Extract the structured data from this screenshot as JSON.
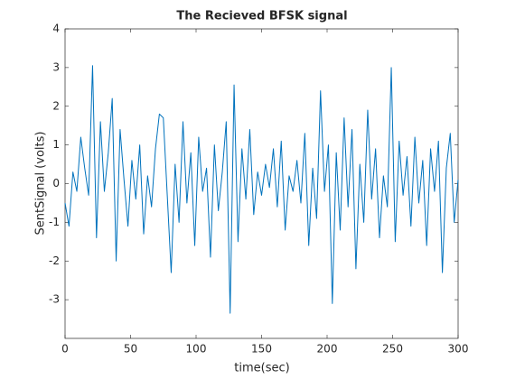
{
  "chart_data": {
    "type": "line",
    "title": "The Recieved BFSK signal",
    "xlabel": "time(sec)",
    "ylabel": "SentSignal (volts)",
    "x": [
      0,
      3,
      6,
      9,
      12,
      15,
      18,
      21,
      24,
      27,
      30,
      33,
      36,
      39,
      42,
      45,
      48,
      51,
      54,
      57,
      60,
      63,
      66,
      69,
      72,
      75,
      78,
      81,
      84,
      87,
      90,
      93,
      96,
      99,
      102,
      105,
      108,
      111,
      114,
      117,
      120,
      123,
      126,
      129,
      132,
      135,
      138,
      141,
      144,
      147,
      150,
      153,
      156,
      159,
      162,
      165,
      168,
      171,
      174,
      177,
      180,
      183,
      186,
      189,
      192,
      195,
      198,
      201,
      204,
      207,
      210,
      213,
      216,
      219,
      222,
      225,
      228,
      231,
      234,
      237,
      240,
      243,
      246,
      249,
      252,
      255,
      258,
      261,
      264,
      267,
      270,
      273,
      276,
      279,
      282,
      285,
      288,
      291,
      294,
      297,
      300
    ],
    "series": [
      {
        "name": "SentSignal",
        "color": "#0072bd",
        "values": [
          -0.5,
          -1.1,
          0.3,
          -0.2,
          1.2,
          0.4,
          -0.3,
          3.05,
          -1.4,
          1.6,
          -0.2,
          0.8,
          2.2,
          -2.0,
          1.4,
          0.1,
          -1.1,
          0.6,
          -0.4,
          1.0,
          -1.3,
          0.2,
          -0.6,
          0.9,
          1.8,
          1.7,
          -0.3,
          -2.3,
          0.5,
          -1.0,
          1.6,
          -0.5,
          0.8,
          -1.6,
          1.2,
          -0.2,
          0.4,
          -1.9,
          1.0,
          -0.7,
          0.3,
          1.6,
          -3.35,
          2.55,
          -1.5,
          0.9,
          -0.4,
          1.4,
          -0.8,
          0.3,
          -0.3,
          0.5,
          -0.1,
          0.9,
          -0.6,
          1.1,
          -1.2,
          0.2,
          -0.2,
          0.6,
          -0.5,
          1.3,
          -1.6,
          0.4,
          -0.9,
          2.4,
          -0.2,
          1.0,
          -3.1,
          0.8,
          -1.2,
          1.7,
          -0.6,
          1.4,
          -2.2,
          0.5,
          -1.0,
          1.9,
          -0.4,
          0.9,
          -1.4,
          0.2,
          -0.6,
          3.0,
          -1.5,
          1.1,
          -0.3,
          0.7,
          -1.1,
          1.2,
          -0.5,
          0.6,
          -1.6,
          0.9,
          -0.2,
          1.1,
          -2.3,
          0.4,
          1.3,
          -1.0,
          0.1
        ]
      }
    ],
    "xlim": [
      0,
      300
    ],
    "xticks": [
      0,
      50,
      100,
      150,
      200,
      250,
      300
    ],
    "ylim": [
      -4,
      4
    ],
    "yticks": [
      -3,
      -2,
      -1,
      0,
      1,
      2,
      3,
      4
    ]
  }
}
